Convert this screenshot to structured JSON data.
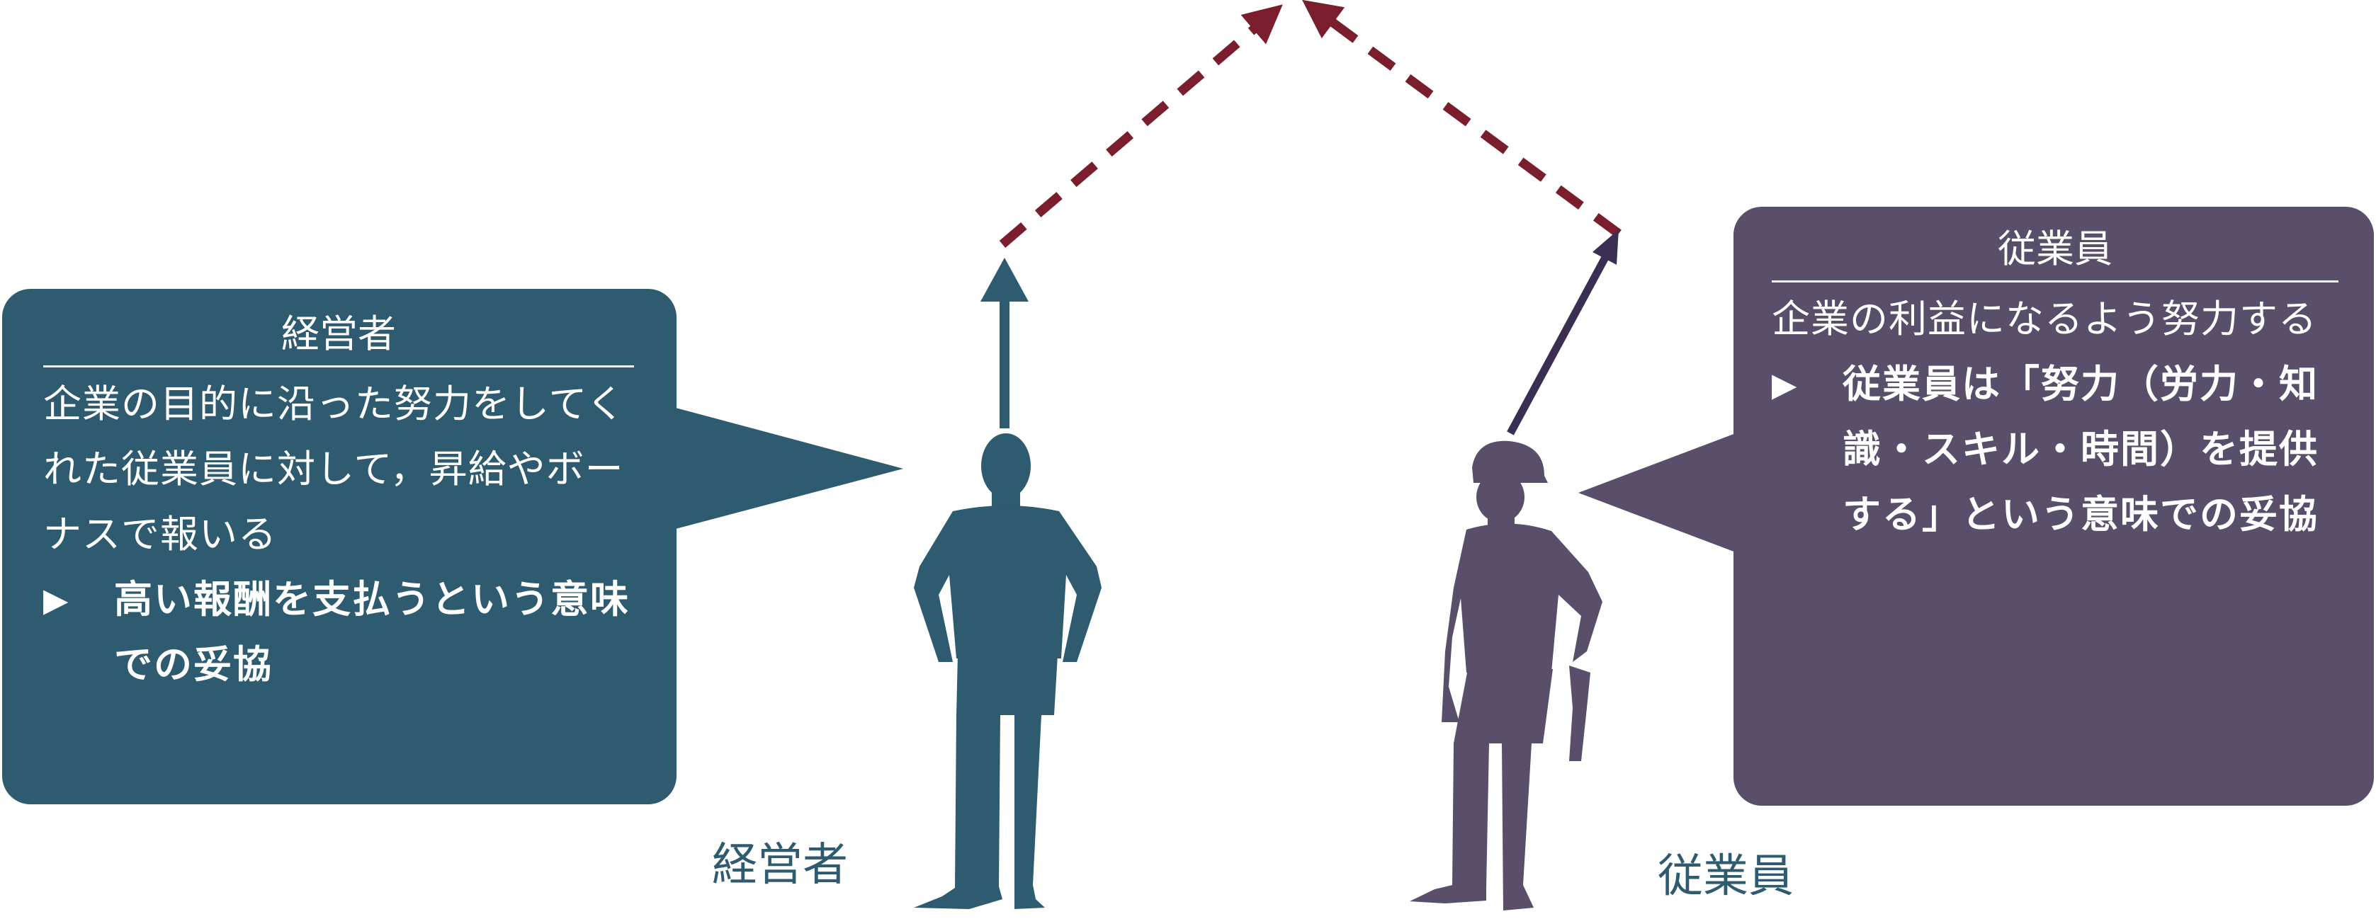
{
  "colors": {
    "manager": "#2e5b70",
    "employee": "#594f6a",
    "dashed_arrow": "#7a1e2e",
    "manager_arrow": "#2e5b70",
    "employee_arrow": "#3a2f52"
  },
  "left_bubble": {
    "title": "経営者",
    "body": "企業の目的に沿った努力をしてくれた従業員に対して，昇給やボーナスで報いる",
    "bullet_mark": "▶",
    "bullet_text": "高い報酬を支払うという意味での妥協"
  },
  "right_bubble": {
    "title": "従業員",
    "body": "企業の利益になるよう努力する",
    "bullet_mark": "▶",
    "bullet_text": "従業員は「努力（労力・知識・スキル・時間）を提供する」という意味での妥協"
  },
  "figure_labels": {
    "manager": "経営者",
    "employee": "従業員"
  },
  "icons": {
    "manager_figure": "businessman-silhouette-icon",
    "employee_figure": "construction-worker-silhouette-icon"
  }
}
